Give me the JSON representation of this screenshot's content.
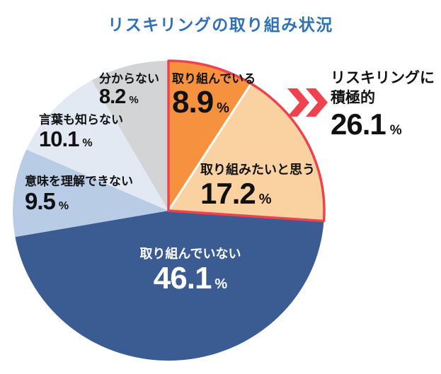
{
  "title": "リスキリングの取り組み状況",
  "colors": {
    "title": "#2E71B7",
    "highlight": "#F0414F",
    "background": "#FFFFFF"
  },
  "chart_data": {
    "type": "pie",
    "title": "リスキリングの取り組み状況",
    "direction": "clockwise",
    "start_angle_deg": 0,
    "unit": "%",
    "segments": [
      {
        "label": "取り組んでいる",
        "value": 8.9,
        "value_label": "8.9",
        "color": "#F6923E",
        "text_color": "#111111"
      },
      {
        "label": "取り組みたいと思う",
        "value": 17.2,
        "value_label": "17.2",
        "color": "#FAD2A2",
        "text_color": "#111111"
      },
      {
        "label": "取り組んでいない",
        "value": 46.1,
        "value_label": "46.1",
        "color": "#3B5B93",
        "text_color": "#FFFFFF"
      },
      {
        "label": "意味を理解できない",
        "value": 9.5,
        "value_label": "9.5",
        "color": "#B9CCE6",
        "text_color": "#111111"
      },
      {
        "label": "言葉も知らない",
        "value": 10.1,
        "value_label": "10.1",
        "color": "#E2E9F3",
        "text_color": "#111111"
      },
      {
        "label": "分からない",
        "value": 8.2,
        "value_label": "8.2",
        "color": "#D3D4D6",
        "text_color": "#111111"
      }
    ],
    "highlight_indices": [
      0,
      1
    ],
    "highlight_border_color": "#F0414F",
    "separator_color": "#FFFFFF",
    "annotation": {
      "line1": "リスキリングに",
      "line2": "積極的",
      "value": 26.1,
      "value_label": "26.1",
      "unit": "%"
    }
  }
}
